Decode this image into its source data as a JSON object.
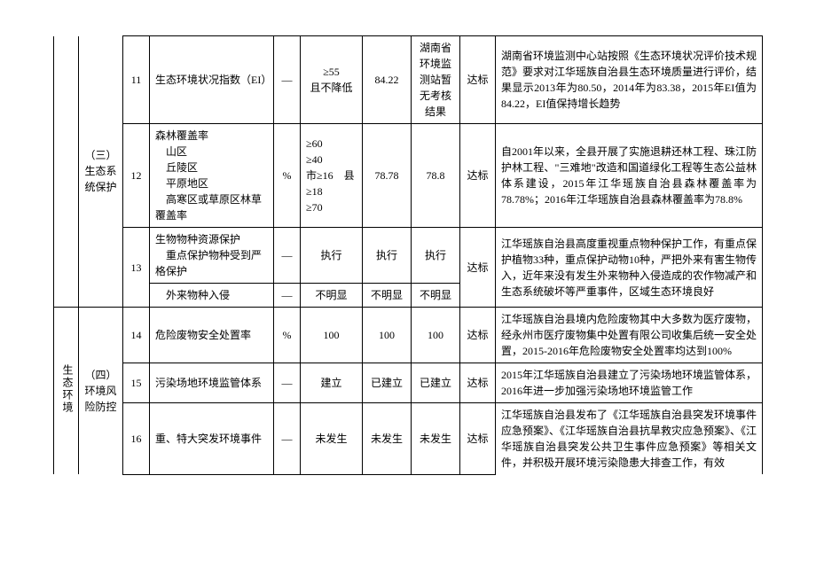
{
  "cat1_a": "",
  "cat1_b": "生态环境",
  "cat2_a": "（三）生态系统保护",
  "cat2_b": "（四）环境风险防控",
  "rows": {
    "r11": {
      "num": "11",
      "indicator": "生态环境状况指数（EI）",
      "unit": "—",
      "req": "≥55\n且不降低",
      "v1": "84.22",
      "v2": "湖南省环境监测站暂无考核结果",
      "status": "达标",
      "desc": "湖南省环境监测中心站按照《生态环境状况评价技术规范》要求对江华瑶族自治县生态环境质量进行评价，结果显示2013年为80.50，2014年为83.38，2015年EI值为84.22，EI值保持增长趋势"
    },
    "r12": {
      "num": "12",
      "indicator": "森林覆盖率\n　山区\n　丘陵区\n　平原地区\n　高寒区或草原区林草覆盖率",
      "unit": "%",
      "req": "≥60\n≥40\n市≥16　县≥18\n≥70",
      "v1": "78.78",
      "v2": "78.8",
      "status": "达标",
      "desc": "自2001年以来，全县开展了实施退耕还林工程、珠江防护林工程、\"三难地\"改造和国道绿化工程等生态公益林体系建设，2015年江华瑶族自治县森林覆盖率为78.78%；2016年江华瑶族自治县森林覆盖率为78.8%"
    },
    "r13a": {
      "num": "13",
      "indicator": "生物物种资源保护\n　重点保护物种受到严格保护",
      "unit": "—",
      "req": "执行",
      "v1": "执行",
      "v2": "执行",
      "status": "达标",
      "desc": "江华瑶族自治县高度重视重点物种保护工作，有重点保护植物33种，重点保护动物10种，严把外来有害生物传入，近年来没有发生外来物种入侵造成的农作物减产和生态系统破坏等严重事件，区域生态环境良好"
    },
    "r13b": {
      "indicator": "　外来物种入侵",
      "unit": "—",
      "req": "不明显",
      "v1": "不明显",
      "v2": "不明显"
    },
    "r14": {
      "num": "14",
      "indicator": "危险废物安全处置率",
      "unit": "%",
      "req": "100",
      "v1": "100",
      "v2": "100",
      "status": "达标",
      "desc": "江华瑶族自治县境内危险废物其中大多数为医疗废物，经永州市医疗废物集中处置有限公司收集后统一安全处置，2015-2016年危险废物安全处置率均达到100%"
    },
    "r15": {
      "num": "15",
      "indicator": "污染场地环境监管体系",
      "unit": "—",
      "req": "建立",
      "v1": "已建立",
      "v2": "已建立",
      "status": "达标",
      "desc": "2015年江华瑶族自治县建立了污染场地环境监管体系，2016年进一步加强污染场地环境监管工作"
    },
    "r16": {
      "num": "16",
      "indicator": "重、特大突发环境事件",
      "unit": "—",
      "req": "未发生",
      "v1": "未发生",
      "v2": "未发生",
      "status": "达标",
      "desc": "江华瑶族自治县发布了《江华瑶族自治县突发环境事件应急预案》、《江华瑶族自治县抗旱救灾应急预案》、《江华瑶族自治县突发公共卫生事件应急预案》等相关文件，并积极开展环境污染隐患大排查工作，有效"
    }
  }
}
